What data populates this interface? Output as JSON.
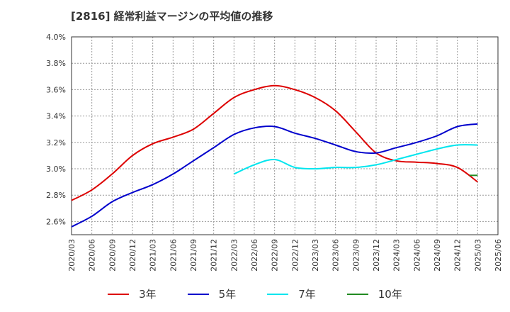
{
  "title": "[2816]  経常利益マージンの平均値の推移",
  "chart_data": {
    "type": "line",
    "x": [
      "2020/03",
      "2020/06",
      "2020/09",
      "2020/12",
      "2021/03",
      "2021/06",
      "2021/09",
      "2021/12",
      "2022/03",
      "2022/06",
      "2022/09",
      "2022/12",
      "2023/03",
      "2023/06",
      "2023/09",
      "2023/12",
      "2024/03",
      "2024/06",
      "2024/09",
      "2024/12",
      "2025/03",
      "2025/06"
    ],
    "y_ticks": [
      "2.6%",
      "2.8%",
      "3.0%",
      "3.2%",
      "3.4%",
      "3.6%",
      "3.8%",
      "4.0%"
    ],
    "ylim": [
      2.5,
      4.0
    ],
    "grid": true,
    "legend_position": "bottom",
    "series": [
      {
        "name": "3年",
        "color": "#dd0000",
        "points": [
          [
            0,
            2.76
          ],
          [
            1,
            2.84
          ],
          [
            2,
            2.96
          ],
          [
            3,
            3.1
          ],
          [
            4,
            3.19
          ],
          [
            5,
            3.24
          ],
          [
            6,
            3.3
          ],
          [
            7,
            3.42
          ],
          [
            8,
            3.54
          ],
          [
            9,
            3.6
          ],
          [
            10,
            3.63
          ],
          [
            11,
            3.6
          ],
          [
            12,
            3.54
          ],
          [
            13,
            3.44
          ],
          [
            14,
            3.28
          ],
          [
            15,
            3.12
          ],
          [
            16,
            3.06
          ],
          [
            17,
            3.05
          ],
          [
            18,
            3.04
          ],
          [
            19,
            3.01
          ],
          [
            20,
            2.9
          ]
        ]
      },
      {
        "name": "5年",
        "color": "#0000cc",
        "points": [
          [
            0,
            2.56
          ],
          [
            1,
            2.64
          ],
          [
            2,
            2.75
          ],
          [
            3,
            2.82
          ],
          [
            4,
            2.88
          ],
          [
            5,
            2.96
          ],
          [
            6,
            3.06
          ],
          [
            7,
            3.16
          ],
          [
            8,
            3.26
          ],
          [
            9,
            3.31
          ],
          [
            10,
            3.32
          ],
          [
            11,
            3.27
          ],
          [
            12,
            3.23
          ],
          [
            13,
            3.18
          ],
          [
            14,
            3.13
          ],
          [
            15,
            3.12
          ],
          [
            16,
            3.16
          ],
          [
            17,
            3.2
          ],
          [
            18,
            3.25
          ],
          [
            19,
            3.32
          ],
          [
            20,
            3.34
          ]
        ]
      },
      {
        "name": "7年",
        "color": "#00e5ee",
        "points": [
          [
            8,
            2.96
          ],
          [
            9,
            3.03
          ],
          [
            10,
            3.07
          ],
          [
            11,
            3.01
          ],
          [
            12,
            3.0
          ],
          [
            13,
            3.01
          ],
          [
            14,
            3.01
          ],
          [
            15,
            3.03
          ],
          [
            16,
            3.07
          ],
          [
            17,
            3.11
          ],
          [
            18,
            3.15
          ],
          [
            19,
            3.18
          ],
          [
            20,
            3.18
          ]
        ]
      },
      {
        "name": "10年",
        "color": "#228b22",
        "points": [
          [
            19.6,
            2.95
          ],
          [
            20,
            2.95
          ]
        ]
      }
    ]
  }
}
